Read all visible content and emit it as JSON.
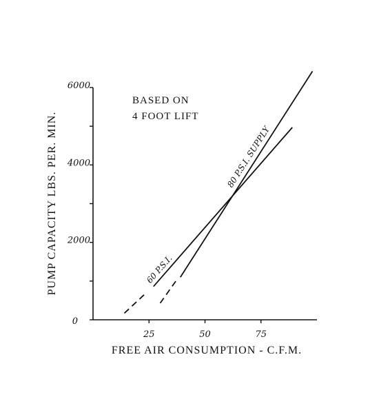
{
  "chart_data": {
    "type": "line",
    "xlabel": "FREE AIR CONSUMPTION - C.F.M.",
    "ylabel": "PUMP CAPACITY   LBS. PER. MIN.",
    "xlim": [
      0,
      100
    ],
    "ylim": [
      0,
      6000
    ],
    "x_ticks": [
      {
        "value": 25,
        "label": "25"
      },
      {
        "value": 50,
        "label": "50"
      },
      {
        "value": 75,
        "label": "75"
      }
    ],
    "y_ticks": [
      {
        "value": 0,
        "label": "0"
      },
      {
        "value": 2000,
        "label": "2000"
      },
      {
        "value": 4000,
        "label": "4000"
      },
      {
        "value": 6000,
        "label": "6000"
      }
    ],
    "grid": false,
    "annotations": [
      "BASED ON",
      "4 FOOT LIFT"
    ],
    "series": [
      {
        "label": "60 P.S.I.",
        "solid": [
          [
            27,
            860
          ],
          [
            89,
            4970
          ]
        ],
        "dashed": [
          [
            14,
            170
          ],
          [
            24,
            710
          ]
        ]
      },
      {
        "label": "80 P.S.I. SUPPLY",
        "solid": [
          [
            39,
            1100
          ],
          [
            98,
            6420
          ]
        ],
        "dashed": [
          [
            30,
            430
          ],
          [
            37,
            1000
          ]
        ]
      }
    ]
  }
}
